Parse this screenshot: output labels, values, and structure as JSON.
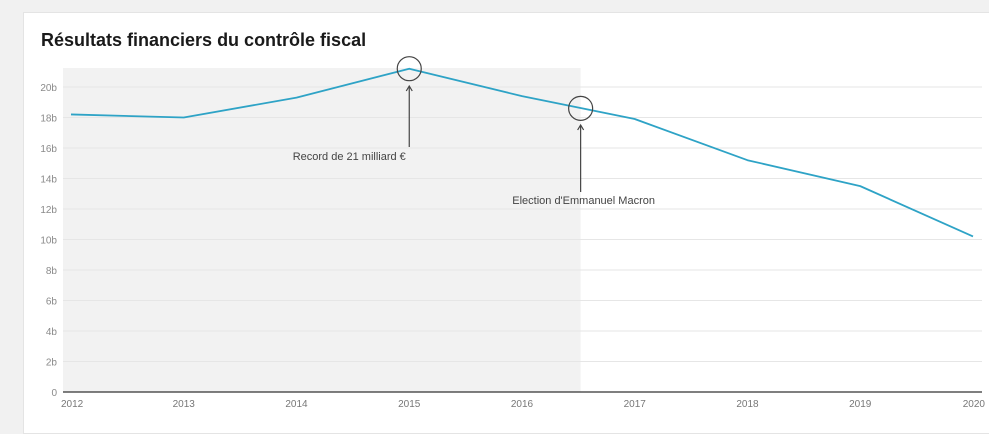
{
  "chart_data": {
    "type": "line",
    "title": "Résultats financiers du contrôle fiscal",
    "xlabel": "",
    "ylabel": "",
    "x": [
      "2012",
      "2013",
      "2014",
      "2015",
      "2016",
      "2017",
      "2018",
      "2019",
      "2020"
    ],
    "series": [
      {
        "name": "Résultats financiers",
        "values": [
          18.2,
          18.0,
          19.3,
          21.2,
          19.4,
          17.9,
          15.2,
          13.5,
          10.2
        ],
        "color": "#2ea3c6"
      }
    ],
    "ylim": [
      0,
      21.5
    ],
    "yticks": [
      0,
      2,
      4,
      6,
      8,
      10,
      12,
      14,
      16,
      18,
      20
    ],
    "ytick_labels": [
      "0",
      "2b",
      "4b",
      "6b",
      "8b",
      "10b",
      "12b",
      "14b",
      "16b",
      "18b",
      "20b"
    ],
    "grid": true,
    "shaded_region": {
      "x_start": 2012,
      "x_end": 2016.52,
      "color": "#f2f2f2"
    },
    "annotations": [
      {
        "text": "Record de 21 milliard €",
        "x": 2015,
        "y": 21.2
      },
      {
        "text": "Election d'Emmanuel Macron",
        "x": 2016.52,
        "y": 18.6
      }
    ]
  }
}
